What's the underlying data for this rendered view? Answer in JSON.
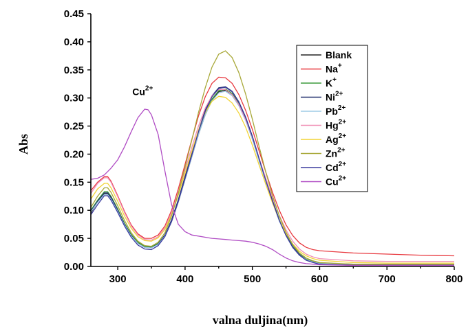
{
  "chart_data": {
    "type": "line",
    "title": "",
    "xlabel": "valna duljina(nm)",
    "ylabel": "Abs",
    "xlim": [
      260,
      800
    ],
    "ylim": [
      0.0,
      0.45
    ],
    "x_ticks": [
      "300",
      "400",
      "500",
      "600",
      "700",
      "800"
    ],
    "y_ticks": [
      "0.00",
      "0.05",
      "0.10",
      "0.15",
      "0.20",
      "0.25",
      "0.30",
      "0.35",
      "0.40",
      "0.45"
    ],
    "grid": false,
    "legend_placement": "top-right",
    "annotation": {
      "text": "Cu",
      "sup": "2+",
      "x": 340,
      "y": 0.305
    },
    "legend": [
      {
        "label": "Blank",
        "sup": ""
      },
      {
        "label": "Na",
        "sup": "+"
      },
      {
        "label": "K",
        "sup": "+"
      },
      {
        "label": "Ni",
        "sup": "2+"
      },
      {
        "label": "Pb",
        "sup": "2+"
      },
      {
        "label": "Hg",
        "sup": "2+"
      },
      {
        "label": "Ag",
        "sup": "2+"
      },
      {
        "label": "Zn",
        "sup": "2+"
      },
      {
        "label": "Cd",
        "sup": "2+"
      },
      {
        "label": "Cu",
        "sup": "2+"
      }
    ],
    "series": [
      {
        "name": "Blank",
        "color": "#222222",
        "x": [
          260,
          270,
          280,
          285,
          290,
          300,
          310,
          320,
          330,
          340,
          350,
          360,
          370,
          380,
          390,
          400,
          410,
          420,
          430,
          440,
          450,
          460,
          470,
          480,
          490,
          500,
          510,
          520,
          530,
          540,
          550,
          560,
          570,
          580,
          590,
          600,
          650,
          700,
          750,
          800
        ],
        "y": [
          0.095,
          0.115,
          0.13,
          0.13,
          0.122,
          0.1,
          0.075,
          0.055,
          0.042,
          0.035,
          0.034,
          0.04,
          0.055,
          0.08,
          0.115,
          0.155,
          0.195,
          0.235,
          0.27,
          0.296,
          0.311,
          0.314,
          0.306,
          0.288,
          0.262,
          0.228,
          0.19,
          0.152,
          0.115,
          0.082,
          0.055,
          0.034,
          0.02,
          0.012,
          0.008,
          0.005,
          0.003,
          0.003,
          0.003,
          0.003
        ]
      },
      {
        "name": "Na+",
        "color": "#e8393f",
        "x": [
          260,
          270,
          280,
          285,
          290,
          300,
          310,
          320,
          330,
          340,
          350,
          360,
          370,
          380,
          390,
          400,
          410,
          420,
          430,
          440,
          450,
          460,
          470,
          480,
          490,
          500,
          510,
          520,
          530,
          540,
          550,
          560,
          570,
          580,
          590,
          600,
          650,
          700,
          750,
          800
        ],
        "y": [
          0.135,
          0.15,
          0.16,
          0.16,
          0.152,
          0.126,
          0.098,
          0.074,
          0.058,
          0.05,
          0.05,
          0.056,
          0.072,
          0.1,
          0.138,
          0.182,
          0.226,
          0.268,
          0.302,
          0.326,
          0.337,
          0.336,
          0.326,
          0.306,
          0.278,
          0.244,
          0.206,
          0.168,
          0.132,
          0.1,
          0.074,
          0.055,
          0.042,
          0.034,
          0.03,
          0.028,
          0.024,
          0.022,
          0.02,
          0.019
        ]
      },
      {
        "name": "K+",
        "color": "#3a9a3a",
        "x": [
          260,
          270,
          280,
          285,
          290,
          300,
          310,
          320,
          330,
          340,
          350,
          360,
          370,
          380,
          390,
          400,
          410,
          420,
          430,
          440,
          450,
          460,
          470,
          480,
          490,
          500,
          510,
          520,
          530,
          540,
          550,
          560,
          570,
          580,
          590,
          600,
          650,
          700,
          750,
          800
        ],
        "y": [
          0.1,
          0.118,
          0.133,
          0.133,
          0.125,
          0.102,
          0.077,
          0.057,
          0.043,
          0.036,
          0.035,
          0.041,
          0.056,
          0.082,
          0.117,
          0.157,
          0.197,
          0.237,
          0.272,
          0.298,
          0.313,
          0.316,
          0.308,
          0.29,
          0.264,
          0.23,
          0.192,
          0.154,
          0.117,
          0.084,
          0.057,
          0.036,
          0.022,
          0.013,
          0.009,
          0.006,
          0.004,
          0.004,
          0.004,
          0.004
        ]
      },
      {
        "name": "Ni2+",
        "color": "#1f2d6b",
        "x": [
          260,
          270,
          280,
          285,
          290,
          300,
          310,
          320,
          330,
          340,
          350,
          360,
          370,
          380,
          390,
          400,
          410,
          420,
          430,
          440,
          450,
          460,
          470,
          480,
          490,
          500,
          510,
          520,
          530,
          540,
          550,
          560,
          570,
          580,
          590,
          600,
          650,
          700,
          750,
          800
        ],
        "y": [
          0.098,
          0.116,
          0.131,
          0.131,
          0.123,
          0.1,
          0.075,
          0.055,
          0.041,
          0.034,
          0.033,
          0.04,
          0.056,
          0.083,
          0.119,
          0.16,
          0.201,
          0.242,
          0.278,
          0.304,
          0.318,
          0.32,
          0.312,
          0.293,
          0.266,
          0.232,
          0.193,
          0.154,
          0.117,
          0.083,
          0.056,
          0.035,
          0.021,
          0.012,
          0.008,
          0.005,
          0.003,
          0.003,
          0.003,
          0.003
        ]
      },
      {
        "name": "Pb2+",
        "color": "#9ecbe6",
        "x": [
          260,
          270,
          280,
          285,
          290,
          300,
          310,
          320,
          330,
          340,
          350,
          360,
          370,
          380,
          390,
          400,
          410,
          420,
          430,
          440,
          450,
          460,
          470,
          480,
          490,
          500,
          510,
          520,
          530,
          540,
          550,
          560,
          570,
          580,
          590,
          600,
          650,
          700,
          750,
          800
        ],
        "y": [
          0.097,
          0.114,
          0.128,
          0.128,
          0.12,
          0.098,
          0.074,
          0.054,
          0.041,
          0.034,
          0.033,
          0.039,
          0.054,
          0.08,
          0.115,
          0.155,
          0.195,
          0.235,
          0.27,
          0.295,
          0.309,
          0.312,
          0.304,
          0.286,
          0.26,
          0.226,
          0.188,
          0.15,
          0.114,
          0.081,
          0.055,
          0.034,
          0.02,
          0.012,
          0.008,
          0.005,
          0.004,
          0.004,
          0.004,
          0.004
        ]
      },
      {
        "name": "Hg2+",
        "color": "#f08fb5",
        "x": [
          260,
          270,
          280,
          285,
          290,
          300,
          310,
          320,
          330,
          340,
          350,
          360,
          370,
          380,
          390,
          400,
          410,
          420,
          430,
          440,
          450,
          460,
          470,
          480,
          490,
          500,
          510,
          520,
          530,
          540,
          550,
          560,
          570,
          580,
          590,
          600,
          650,
          700,
          750,
          800
        ],
        "y": [
          0.13,
          0.148,
          0.158,
          0.158,
          0.15,
          0.124,
          0.096,
          0.072,
          0.056,
          0.048,
          0.047,
          0.053,
          0.069,
          0.096,
          0.132,
          0.172,
          0.212,
          0.25,
          0.282,
          0.304,
          0.315,
          0.315,
          0.306,
          0.288,
          0.262,
          0.23,
          0.193,
          0.157,
          0.122,
          0.091,
          0.065,
          0.045,
          0.031,
          0.022,
          0.017,
          0.014,
          0.01,
          0.009,
          0.009,
          0.009
        ]
      },
      {
        "name": "Ag2+",
        "color": "#f2d435",
        "x": [
          260,
          270,
          280,
          285,
          290,
          300,
          310,
          320,
          330,
          340,
          350,
          360,
          370,
          380,
          390,
          400,
          410,
          420,
          430,
          440,
          450,
          460,
          470,
          480,
          490,
          500,
          510,
          520,
          530,
          540,
          550,
          560,
          570,
          580,
          590,
          600,
          650,
          700,
          750,
          800
        ],
        "y": [
          0.12,
          0.138,
          0.148,
          0.148,
          0.14,
          0.116,
          0.09,
          0.068,
          0.053,
          0.046,
          0.045,
          0.051,
          0.066,
          0.092,
          0.127,
          0.166,
          0.205,
          0.243,
          0.274,
          0.294,
          0.303,
          0.301,
          0.291,
          0.273,
          0.248,
          0.216,
          0.181,
          0.146,
          0.113,
          0.083,
          0.059,
          0.04,
          0.027,
          0.019,
          0.014,
          0.011,
          0.007,
          0.006,
          0.006,
          0.006
        ]
      },
      {
        "name": "Zn2+",
        "color": "#a8a838",
        "x": [
          260,
          270,
          280,
          285,
          290,
          300,
          310,
          320,
          330,
          340,
          350,
          360,
          370,
          380,
          390,
          400,
          410,
          420,
          430,
          440,
          450,
          460,
          470,
          480,
          490,
          500,
          510,
          520,
          530,
          540,
          550,
          560,
          570,
          580,
          590,
          600,
          650,
          700,
          750,
          800
        ],
        "y": [
          0.105,
          0.125,
          0.14,
          0.14,
          0.132,
          0.108,
          0.082,
          0.06,
          0.045,
          0.037,
          0.036,
          0.043,
          0.06,
          0.09,
          0.13,
          0.177,
          0.225,
          0.274,
          0.318,
          0.355,
          0.378,
          0.384,
          0.372,
          0.345,
          0.307,
          0.262,
          0.214,
          0.168,
          0.126,
          0.09,
          0.061,
          0.039,
          0.024,
          0.015,
          0.01,
          0.007,
          0.004,
          0.004,
          0.004,
          0.004
        ]
      },
      {
        "name": "Cd2+",
        "color": "#3b3b9e",
        "x": [
          260,
          270,
          280,
          285,
          290,
          300,
          310,
          320,
          330,
          340,
          350,
          360,
          370,
          380,
          390,
          400,
          410,
          420,
          430,
          440,
          450,
          460,
          470,
          480,
          490,
          500,
          510,
          520,
          530,
          540,
          550,
          560,
          570,
          580,
          590,
          600,
          650,
          700,
          750,
          800
        ],
        "y": [
          0.092,
          0.11,
          0.126,
          0.126,
          0.118,
          0.096,
          0.072,
          0.052,
          0.038,
          0.031,
          0.03,
          0.037,
          0.053,
          0.08,
          0.116,
          0.157,
          0.198,
          0.24,
          0.276,
          0.302,
          0.317,
          0.319,
          0.311,
          0.292,
          0.265,
          0.231,
          0.192,
          0.153,
          0.116,
          0.082,
          0.055,
          0.034,
          0.02,
          0.011,
          0.007,
          0.004,
          0.002,
          0.002,
          0.002,
          0.002
        ]
      },
      {
        "name": "Cu2+",
        "color": "#b04cc4",
        "x": [
          260,
          270,
          280,
          290,
          300,
          310,
          320,
          330,
          340,
          345,
          350,
          360,
          370,
          380,
          390,
          400,
          410,
          420,
          430,
          440,
          450,
          460,
          470,
          480,
          490,
          500,
          510,
          520,
          530,
          540,
          550,
          560,
          570,
          580,
          590,
          600,
          650,
          700,
          750,
          800
        ],
        "y": [
          0.155,
          0.157,
          0.163,
          0.175,
          0.19,
          0.213,
          0.24,
          0.265,
          0.28,
          0.279,
          0.27,
          0.235,
          0.17,
          0.11,
          0.075,
          0.062,
          0.056,
          0.054,
          0.052,
          0.05,
          0.049,
          0.048,
          0.047,
          0.046,
          0.045,
          0.043,
          0.04,
          0.036,
          0.03,
          0.022,
          0.015,
          0.01,
          0.007,
          0.005,
          0.004,
          0.003,
          0.002,
          0.002,
          0.002,
          0.002
        ]
      }
    ]
  }
}
